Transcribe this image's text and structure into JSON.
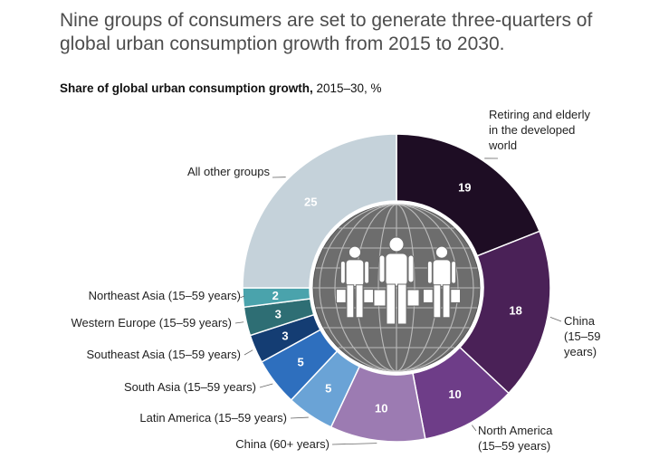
{
  "header": {
    "title": "Nine groups of consumers are set to generate three-quarters of global urban consumption growth from 2015 to 2030.",
    "subtitle_bold": "Share of global urban consumption growth,",
    "subtitle_rest": " 2015–30, %"
  },
  "chart_data": {
    "type": "pie",
    "title": "Share of global urban consumption growth, 2015–30, %",
    "categories": [
      "Retiring and elderly in the developed world",
      "China (15–59 years)",
      "North America (15–59 years)",
      "China (60+ years)",
      "Latin America (15–59 years)",
      "South Asia (15–59 years)",
      "Southeast Asia (15–59 years)",
      "Western Europe (15–59 years)",
      "Northeast Asia (15–59 years)",
      "All other groups"
    ],
    "values": [
      19,
      18,
      10,
      10,
      5,
      5,
      3,
      3,
      2,
      25
    ],
    "value_labels": [
      "19",
      "18",
      "10",
      "10",
      "5",
      "5",
      "3",
      "3",
      "2",
      "25"
    ],
    "label_lines": [
      [
        "Retiring and elderly",
        "in the developed",
        "world"
      ],
      [
        "China",
        "(15–59",
        "years)"
      ],
      [
        "North America",
        "(15–59 years)"
      ],
      [
        "China (60+ years)"
      ],
      [
        "Latin America (15–59 years)"
      ],
      [
        "South Asia (15–59 years)"
      ],
      [
        "Southeast Asia (15–59 years)"
      ],
      [
        "Western Europe (15–59 years)"
      ],
      [
        "Northeast Asia (15–59 years)"
      ],
      [
        "All other groups"
      ]
    ],
    "colors": [
      "#1e0d24",
      "#4a2157",
      "#6e3d88",
      "#9c7bb2",
      "#6aa3d6",
      "#2e6fbe",
      "#143d73",
      "#2e6e74",
      "#4aa3ac",
      "#c5d2da"
    ],
    "center_icon": "globe-with-shoppers-icon"
  }
}
